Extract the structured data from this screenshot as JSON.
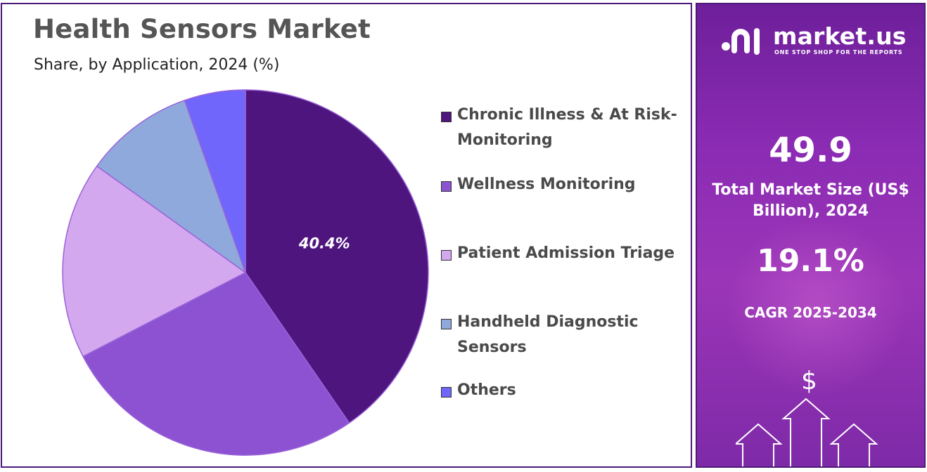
{
  "chart_data": {
    "type": "pie",
    "title": "Health Sensors  Market",
    "subtitle": "Share, by Application, 2024 (%)",
    "slices": [
      {
        "label": "Chronic Illness & At Risk-Monitoring",
        "value": 40.4,
        "color": "#4e157f",
        "data_label": "40.4%"
      },
      {
        "label": "Wellness Monitoring",
        "value": 27.0,
        "color": "#8c52d2",
        "data_label": ""
      },
      {
        "label": "Patient Admission Triage",
        "value": 17.5,
        "color": "#d3a8ee",
        "data_label": ""
      },
      {
        "label": "Handheld Diagnostic Sensors",
        "value": 9.7,
        "color": "#8fa9dc",
        "data_label": ""
      },
      {
        "label": "Others",
        "value": 5.4,
        "color": "#7066fb",
        "data_label": ""
      }
    ],
    "legend_position": "right"
  },
  "legend": {
    "items": [
      {
        "label": "Chronic Illness & At Risk-Monitoring",
        "color": "#4e157f"
      },
      {
        "label": "Wellness Monitoring",
        "color": "#8c52d2"
      },
      {
        "label": "Patient Admission Triage",
        "color": "#d3a8ee"
      },
      {
        "label": "Handheld Diagnostic Sensors",
        "color": "#8fa9dc"
      },
      {
        "label": "Others",
        "color": "#7066fb"
      }
    ]
  },
  "side_panel": {
    "logo_name": "market.us",
    "logo_tagline": "ONE STOP SHOP FOR THE REPORTS",
    "market_size_value": "49.9",
    "market_size_label": "Total Market Size (US$ Billion), 2024",
    "cagr_value": "19.1%",
    "cagr_label": "CAGR 2025-2034",
    "dollar_symbol": "$",
    "icons": [
      "market-us-logo-icon",
      "dollar-icon",
      "up-arrow-icon"
    ]
  }
}
